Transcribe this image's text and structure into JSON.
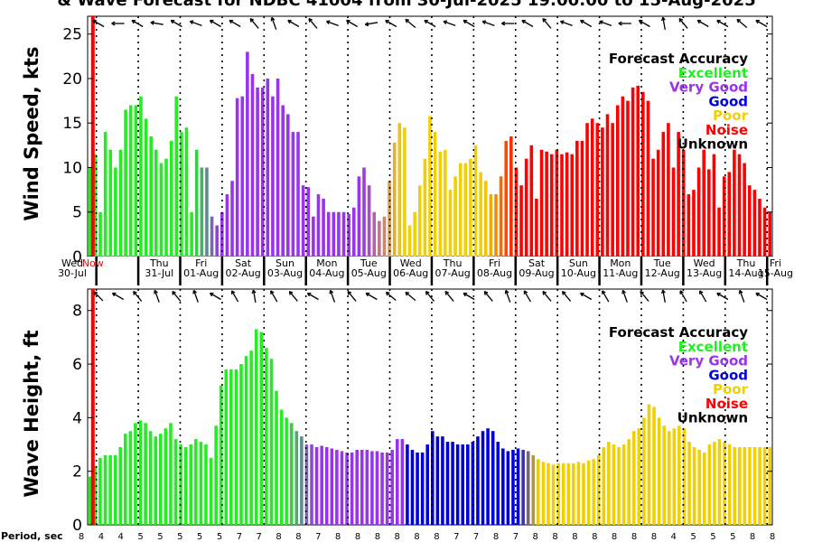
{
  "title": "& Wave Forecast for NDBC 41004 from 30-Jul-2025 19:00:00 to 15-Aug-2025",
  "now_label": "Now",
  "period_label": "Period, sec",
  "day_labels": [
    {
      "dow": "Wed",
      "date": "30-Jul"
    },
    {
      "dow": "Thu",
      "date": "31-Jul"
    },
    {
      "dow": "Fri",
      "date": "01-Aug"
    },
    {
      "dow": "Sat",
      "date": "02-Aug"
    },
    {
      "dow": "Sun",
      "date": "03-Aug"
    },
    {
      "dow": "Mon",
      "date": "04-Aug"
    },
    {
      "dow": "Tue",
      "date": "05-Aug"
    },
    {
      "dow": "Wed",
      "date": "06-Aug"
    },
    {
      "dow": "Thu",
      "date": "07-Aug"
    },
    {
      "dow": "Fri",
      "date": "08-Aug"
    },
    {
      "dow": "Sat",
      "date": "09-Aug"
    },
    {
      "dow": "Sun",
      "date": "10-Aug"
    },
    {
      "dow": "Mon",
      "date": "11-Aug"
    },
    {
      "dow": "Tue",
      "date": "12-Aug"
    },
    {
      "dow": "Wed",
      "date": "13-Aug"
    },
    {
      "dow": "Thu",
      "date": "14-Aug"
    },
    {
      "dow": "Fri",
      "date": "15-Aug"
    }
  ],
  "legend": {
    "title": "Forecast Accuracy",
    "items": [
      {
        "label": "Excellent",
        "color": "#22ee22"
      },
      {
        "label": "Very Good",
        "color": "#9933ee"
      },
      {
        "label": "Good",
        "color": "#0000dd"
      },
      {
        "label": "Poor",
        "color": "#f2d000"
      },
      {
        "label": "Noise",
        "color": "#ff0000"
      },
      {
        "label": "Unknown",
        "color": "#000000"
      }
    ]
  },
  "periods": [
    8,
    4,
    4,
    5,
    5,
    5,
    5,
    5,
    7,
    7,
    8,
    8,
    7,
    8,
    8,
    8,
    8,
    8,
    8,
    7,
    7,
    8,
    7,
    8,
    8,
    8,
    8,
    8,
    8,
    8,
    4,
    5,
    5,
    5,
    8,
    8
  ],
  "chart_data": [
    {
      "type": "bar",
      "ylabel": "Wind Speed, kts",
      "ylim": [
        0,
        27
      ],
      "yticks": [
        0,
        5,
        10,
        15,
        20,
        25
      ],
      "x_range_hours": [
        0,
        392
      ],
      "now_hour": 3,
      "grid": "vertical dotted day lines",
      "values": [
        10,
        11.5,
        5,
        14,
        12,
        10,
        12,
        16.5,
        17,
        17,
        18,
        15.5,
        13.5,
        12,
        10.5,
        11,
        13,
        18,
        14,
        14.5,
        5,
        12,
        10,
        10,
        4.5,
        3.5,
        5,
        7,
        8.5,
        17.8,
        18,
        23,
        20.5,
        19,
        19,
        20,
        18,
        20,
        17,
        16,
        14,
        14,
        8,
        7.8,
        4.5,
        7,
        6.5,
        5,
        5,
        5,
        5,
        4.8,
        5.5,
        9,
        10,
        8,
        5,
        4,
        4.5,
        8.5,
        12.8,
        15,
        14.5,
        3.5,
        5,
        8,
        11,
        15.8,
        14,
        11.8,
        12,
        7.5,
        9,
        10.5,
        10.5,
        11,
        12.5,
        9.5,
        8.5,
        7,
        7,
        9,
        13,
        13.5,
        10,
        8,
        11,
        12.5,
        6.5,
        12,
        11.8,
        11.5,
        12,
        11.5,
        11.7,
        11.5,
        13,
        13,
        15,
        15.5,
        15,
        14.5,
        16,
        15,
        17,
        18,
        17.5,
        19,
        19.2,
        18.5,
        17.5,
        11,
        12,
        14,
        15,
        10,
        14,
        12,
        7,
        7.5,
        10,
        12,
        9.8,
        11.5,
        5.5,
        9,
        9.5,
        12,
        11.5,
        10.5,
        8,
        7.5,
        6.5,
        5.5,
        5
      ]
    },
    {
      "type": "bar",
      "ylabel": "Wave Height, ft",
      "ylim": [
        0,
        8.8
      ],
      "yticks": [
        0,
        2,
        4,
        6,
        8
      ],
      "x_range_hours": [
        0,
        392
      ],
      "now_hour": 3,
      "grid": "vertical dotted day lines",
      "values": [
        1.8,
        2.2,
        2.5,
        2.6,
        2.6,
        2.6,
        2.9,
        3.4,
        3.5,
        3.8,
        3.9,
        3.8,
        3.5,
        3.3,
        3.4,
        3.6,
        3.8,
        3.2,
        3.0,
        2.9,
        3.0,
        3.2,
        3.1,
        3.0,
        2.5,
        3.7,
        5.2,
        5.8,
        5.8,
        5.8,
        6.0,
        6.3,
        6.5,
        7.3,
        7.2,
        6.6,
        6.2,
        5.0,
        4.3,
        4.0,
        3.8,
        3.5,
        3.3,
        3.0,
        3.0,
        2.9,
        2.95,
        2.9,
        2.85,
        2.8,
        2.75,
        2.7,
        2.7,
        2.8,
        2.8,
        2.8,
        2.75,
        2.75,
        2.7,
        2.7,
        2.8,
        3.2,
        3.2,
        3.0,
        2.8,
        2.7,
        2.7,
        3.0,
        3.5,
        3.3,
        3.3,
        3.1,
        3.1,
        3.0,
        3.0,
        3.0,
        3.1,
        3.3,
        3.5,
        3.6,
        3.5,
        3.1,
        2.85,
        2.75,
        2.8,
        2.85,
        2.8,
        2.75,
        2.6,
        2.45,
        2.35,
        2.3,
        2.25,
        2.3,
        2.3,
        2.3,
        2.3,
        2.35,
        2.3,
        2.4,
        2.45,
        2.6,
        2.9,
        3.1,
        3.0,
        2.9,
        3.0,
        3.2,
        3.5,
        3.6,
        4.0,
        4.5,
        4.4,
        4.0,
        3.7,
        3.5,
        3.6,
        3.7,
        3.6,
        3.1,
        2.9,
        2.8,
        2.7,
        3.0,
        3.1,
        3.2,
        3.1,
        3.0,
        2.9,
        2.9,
        2.9,
        2.9,
        2.9,
        2.9,
        2.9,
        2.9
      ]
    }
  ],
  "wind_directions_deg": [
    300,
    270,
    300,
    280,
    300,
    290,
    300,
    300,
    320,
    340,
    300,
    320,
    290,
    300,
    260,
    300,
    310,
    300,
    290,
    300,
    290,
    270,
    300,
    320,
    290,
    300,
    290,
    270,
    300,
    350,
    320,
    300,
    300,
    310,
    300
  ],
  "wave_directions_deg": [
    315,
    300,
    320,
    340,
    320,
    340,
    300,
    330,
    350,
    330,
    320,
    300,
    340,
    320,
    300,
    310,
    310,
    320,
    320,
    300,
    320,
    340,
    330,
    320,
    320,
    300,
    330,
    340,
    320,
    350,
    330,
    330,
    300,
    340,
    300
  ]
}
